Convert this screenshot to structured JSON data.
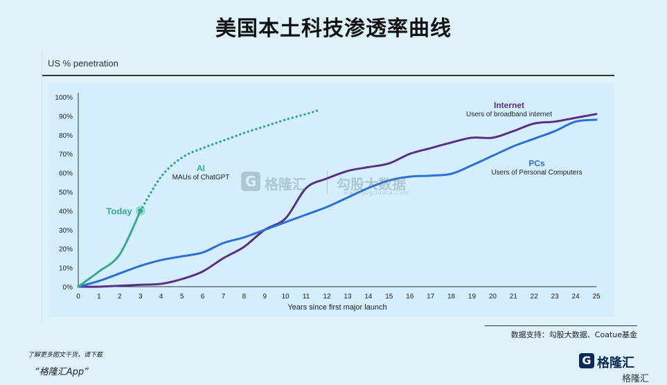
{
  "page": {
    "title": "美国本土科技渗透率曲线",
    "source": "数据支持：勾股大数据、Coatue基金",
    "download_note": "了解更多图文干货，请下载",
    "app_name": "“格隆汇App”",
    "logo_name": "格隆汇",
    "logo_sub": "格隆汇",
    "watermark_left": "格隆汇",
    "watermark_right": "勾股大数据",
    "watermark_url": "www.gogudata.com"
  },
  "chart_data": {
    "type": "line",
    "ylabel": "US % penetration",
    "xlabel": "Years since first major launch",
    "xlim": [
      0,
      25
    ],
    "ylim": [
      0,
      100
    ],
    "x_ticks": [
      0,
      1,
      2,
      3,
      4,
      5,
      6,
      7,
      8,
      9,
      10,
      11,
      12,
      13,
      14,
      15,
      16,
      17,
      18,
      19,
      20,
      21,
      22,
      23,
      24,
      25
    ],
    "y_ticks": [
      "0%",
      "10%",
      "20%",
      "30%",
      "40%",
      "50%",
      "60%",
      "70%",
      "80%",
      "90%",
      "100%"
    ],
    "colors": {
      "AI": "#3aa98a",
      "Internet": "#5b2e86",
      "PCs": "#2a6fd6"
    },
    "series": [
      {
        "name": "Internet",
        "description": "Users of broadband internet",
        "color": "#5b2e86",
        "points": [
          [
            0,
            0
          ],
          [
            1,
            0
          ],
          [
            2,
            0.5
          ],
          [
            3,
            1
          ],
          [
            4,
            1.5
          ],
          [
            5,
            4
          ],
          [
            6,
            8
          ],
          [
            7,
            15
          ],
          [
            8,
            21
          ],
          [
            9,
            30
          ],
          [
            10,
            36
          ],
          [
            11,
            52
          ],
          [
            12,
            57
          ],
          [
            13,
            61
          ],
          [
            14,
            63
          ],
          [
            15,
            65
          ],
          [
            16,
            70
          ],
          [
            17,
            73
          ],
          [
            18,
            76
          ],
          [
            19,
            78.5
          ],
          [
            20,
            78.5
          ],
          [
            21,
            82
          ],
          [
            22,
            86
          ],
          [
            23,
            87
          ],
          [
            24,
            89
          ],
          [
            25,
            91
          ]
        ]
      },
      {
        "name": "PCs",
        "description": "Users of Personal Computers",
        "color": "#2a6fd6",
        "points": [
          [
            0,
            0
          ],
          [
            1,
            3
          ],
          [
            2,
            7
          ],
          [
            3,
            11
          ],
          [
            4,
            14
          ],
          [
            5,
            16
          ],
          [
            6,
            18
          ],
          [
            7,
            23
          ],
          [
            8,
            26
          ],
          [
            9,
            30
          ],
          [
            10,
            34
          ],
          [
            11,
            38
          ],
          [
            12,
            42
          ],
          [
            13,
            47
          ],
          [
            14,
            52
          ],
          [
            15,
            56
          ],
          [
            16,
            58
          ],
          [
            17,
            58.5
          ],
          [
            18,
            59.5
          ],
          [
            19,
            64
          ],
          [
            20,
            69
          ],
          [
            21,
            74
          ],
          [
            22,
            78
          ],
          [
            23,
            82
          ],
          [
            24,
            87
          ],
          [
            25,
            88
          ]
        ]
      },
      {
        "name": "AI",
        "description": "MAUs of ChatGPT",
        "color": "#3aa98a",
        "points": [
          [
            0,
            0
          ],
          [
            1,
            8
          ],
          [
            2,
            17
          ],
          [
            3,
            40
          ]
        ]
      },
      {
        "name": "AI projection",
        "style": "dotted",
        "color": "#3aa98a",
        "points": [
          [
            3,
            40
          ],
          [
            4,
            58
          ],
          [
            5,
            68
          ],
          [
            6,
            73
          ],
          [
            7,
            77
          ],
          [
            8,
            81
          ],
          [
            9,
            84.5
          ],
          [
            10,
            88
          ],
          [
            11,
            91
          ],
          [
            11.6,
            93
          ]
        ]
      }
    ],
    "annotations": [
      {
        "text": "Today",
        "x": 3,
        "y": 40,
        "color": "#3aa98a"
      }
    ]
  }
}
